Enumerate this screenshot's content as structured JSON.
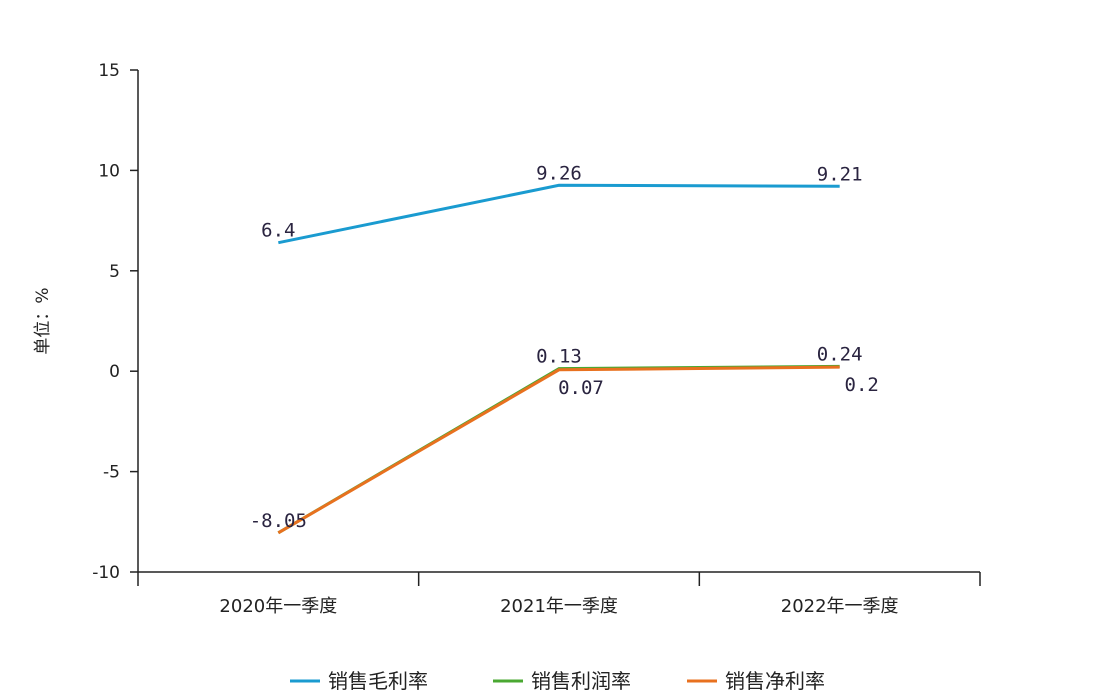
{
  "chart_data": {
    "type": "line",
    "title": "",
    "xlabel": "",
    "ylabel": "单位：%",
    "ylim": [
      -10,
      15
    ],
    "yticks": [
      -10,
      -5,
      0,
      5,
      10,
      15
    ],
    "categories": [
      "2020年一季度",
      "2021年一季度",
      "2022年一季度"
    ],
    "series": [
      {
        "name": "销售毛利率",
        "color": "#1a9bd0",
        "values": [
          6.4,
          9.26,
          9.21
        ],
        "labels": [
          "6.4",
          "9.26",
          "9.21"
        ]
      },
      {
        "name": "销售利润率",
        "color": "#4aa832",
        "values": [
          -8.05,
          0.13,
          0.24
        ],
        "labels": [
          "",
          "0.13",
          "0.24"
        ]
      },
      {
        "name": "销售净利率",
        "color": "#e8711f",
        "values": [
          -8.05,
          0.07,
          0.2
        ],
        "labels": [
          "-8.05",
          "0.07",
          "0.2"
        ]
      }
    ],
    "grid": false,
    "legend": "bottom"
  }
}
